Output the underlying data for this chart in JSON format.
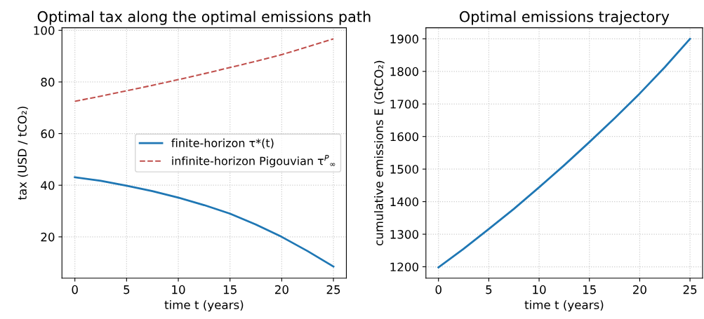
{
  "chart_data": [
    {
      "type": "line",
      "title": "Optimal tax along the optimal emissions path",
      "xlabel": "time t (years)",
      "ylabel": "tax (USD / tCO₂)",
      "x": [
        0,
        2.5,
        5,
        7.5,
        10,
        12.5,
        15,
        17.5,
        20,
        22.5,
        25
      ],
      "series": [
        {
          "name": "finite-horizon τ*(t)",
          "color": "#1f77b4",
          "line_style": "solid",
          "values": [
            43.1,
            41.7,
            39.8,
            37.7,
            35.2,
            32.3,
            29.0,
            24.8,
            20.0,
            14.5,
            8.5
          ]
        },
        {
          "name": "infinite-horizon Pigouvian τ$^{P}$$_{∞}$",
          "color": "#c0504d",
          "line_style": "dashed",
          "values": [
            72.5,
            74.5,
            76.6,
            78.7,
            80.9,
            83.2,
            85.6,
            88.0,
            90.6,
            93.6,
            96.7
          ]
        }
      ],
      "xlim": [
        -1.25,
        26.25
      ],
      "ylim": [
        4,
        101
      ],
      "xticks": [
        0,
        5,
        10,
        15,
        20,
        25
      ],
      "yticks": [
        20,
        40,
        60,
        80,
        100
      ],
      "grid": true,
      "legend": "right",
      "marker": "none"
    },
    {
      "type": "line",
      "title": "Optimal emissions trajectory",
      "xlabel": "time t (years)",
      "ylabel": "cumulative emissions E (GtCO₂)",
      "x": [
        0,
        2.5,
        5,
        7.5,
        10,
        12.5,
        15,
        17.5,
        20,
        22.5,
        25
      ],
      "series": [
        {
          "color": "#1f77b4",
          "line_style": "solid",
          "values": [
            1198,
            1255,
            1316,
            1378,
            1444,
            1512,
            1583,
            1656,
            1732,
            1813,
            1900
          ]
        }
      ],
      "xlim": [
        -1.25,
        26.25
      ],
      "ylim": [
        1165,
        1934
      ],
      "xticks": [
        0,
        5,
        10,
        15,
        20,
        25
      ],
      "yticks": [
        1200,
        1300,
        1400,
        1500,
        1600,
        1700,
        1800,
        1900
      ],
      "grid": true,
      "legend": false,
      "marker": "none"
    }
  ]
}
